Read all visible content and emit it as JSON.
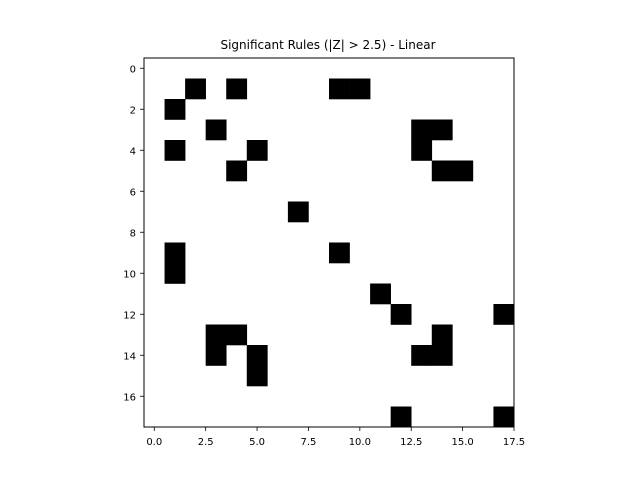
{
  "chart_data": {
    "type": "heatmap",
    "title": "Significant Rules (|Z| > 2.5) - Linear",
    "xlabel": "",
    "ylabel": "",
    "colormap": "binary",
    "colors": {
      "on": "#000000",
      "off": "#ffffff",
      "axis": "#000000"
    },
    "grid": false,
    "y_inverted": true,
    "xlim": [
      -0.5,
      17.5
    ],
    "ylim": [
      -0.5,
      17.5
    ],
    "x_ticks": [
      0,
      2.5,
      5,
      7.5,
      10,
      12.5,
      15,
      17.5
    ],
    "x_tick_labels": [
      "0.0",
      "2.5",
      "5.0",
      "7.5",
      "10.0",
      "12.5",
      "15.0",
      "17.5"
    ],
    "y_ticks": [
      0,
      2,
      4,
      6,
      8,
      10,
      12,
      14,
      16
    ],
    "y_tick_labels": [
      "0",
      "2",
      "4",
      "6",
      "8",
      "10",
      "12",
      "14",
      "16"
    ],
    "rows": 18,
    "cols": 18,
    "matrix": [
      [
        0,
        0,
        0,
        0,
        0,
        0,
        0,
        0,
        0,
        0,
        0,
        0,
        0,
        0,
        0,
        0,
        0,
        0
      ],
      [
        0,
        0,
        1,
        0,
        1,
        0,
        0,
        0,
        0,
        1,
        1,
        0,
        0,
        0,
        0,
        0,
        0,
        0
      ],
      [
        0,
        1,
        0,
        0,
        0,
        0,
        0,
        0,
        0,
        0,
        0,
        0,
        0,
        0,
        0,
        0,
        0,
        0
      ],
      [
        0,
        0,
        0,
        1,
        0,
        0,
        0,
        0,
        0,
        0,
        0,
        0,
        0,
        1,
        1,
        0,
        0,
        0
      ],
      [
        0,
        1,
        0,
        0,
        0,
        1,
        0,
        0,
        0,
        0,
        0,
        0,
        0,
        1,
        0,
        0,
        0,
        0
      ],
      [
        0,
        0,
        0,
        0,
        1,
        0,
        0,
        0,
        0,
        0,
        0,
        0,
        0,
        0,
        1,
        1,
        0,
        0
      ],
      [
        0,
        0,
        0,
        0,
        0,
        0,
        0,
        0,
        0,
        0,
        0,
        0,
        0,
        0,
        0,
        0,
        0,
        0
      ],
      [
        0,
        0,
        0,
        0,
        0,
        0,
        0,
        1,
        0,
        0,
        0,
        0,
        0,
        0,
        0,
        0,
        0,
        0
      ],
      [
        0,
        0,
        0,
        0,
        0,
        0,
        0,
        0,
        0,
        0,
        0,
        0,
        0,
        0,
        0,
        0,
        0,
        0
      ],
      [
        0,
        1,
        0,
        0,
        0,
        0,
        0,
        0,
        0,
        1,
        0,
        0,
        0,
        0,
        0,
        0,
        0,
        0
      ],
      [
        0,
        1,
        0,
        0,
        0,
        0,
        0,
        0,
        0,
        0,
        0,
        0,
        0,
        0,
        0,
        0,
        0,
        0
      ],
      [
        0,
        0,
        0,
        0,
        0,
        0,
        0,
        0,
        0,
        0,
        0,
        1,
        0,
        0,
        0,
        0,
        0,
        0
      ],
      [
        0,
        0,
        0,
        0,
        0,
        0,
        0,
        0,
        0,
        0,
        0,
        0,
        1,
        0,
        0,
        0,
        0,
        1
      ],
      [
        0,
        0,
        0,
        1,
        1,
        0,
        0,
        0,
        0,
        0,
        0,
        0,
        0,
        0,
        1,
        0,
        0,
        0
      ],
      [
        0,
        0,
        0,
        1,
        0,
        1,
        0,
        0,
        0,
        0,
        0,
        0,
        0,
        1,
        1,
        0,
        0,
        0
      ],
      [
        0,
        0,
        0,
        0,
        0,
        1,
        0,
        0,
        0,
        0,
        0,
        0,
        0,
        0,
        0,
        0,
        0,
        0
      ],
      [
        0,
        0,
        0,
        0,
        0,
        0,
        0,
        0,
        0,
        0,
        0,
        0,
        0,
        0,
        0,
        0,
        0,
        0
      ],
      [
        0,
        0,
        0,
        0,
        0,
        0,
        0,
        0,
        0,
        0,
        0,
        0,
        1,
        0,
        0,
        0,
        0,
        1
      ]
    ]
  }
}
